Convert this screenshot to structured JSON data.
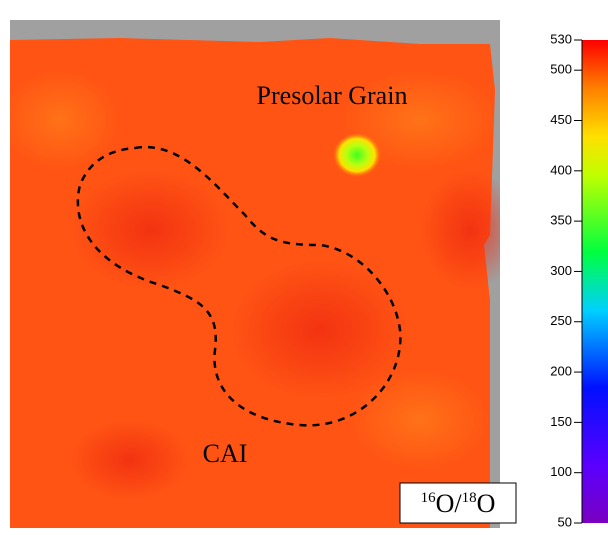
{
  "chart_data": {
    "type": "heatmap",
    "annotations": [
      "Presolar Grain",
      "CAI"
    ],
    "colorbar_label": [
      "16",
      "O/",
      "18",
      "O"
    ],
    "colorbar": {
      "ylim": [
        50,
        530
      ],
      "yticks": [
        50,
        100,
        150,
        200,
        250,
        300,
        350,
        400,
        450,
        500,
        530
      ]
    }
  }
}
